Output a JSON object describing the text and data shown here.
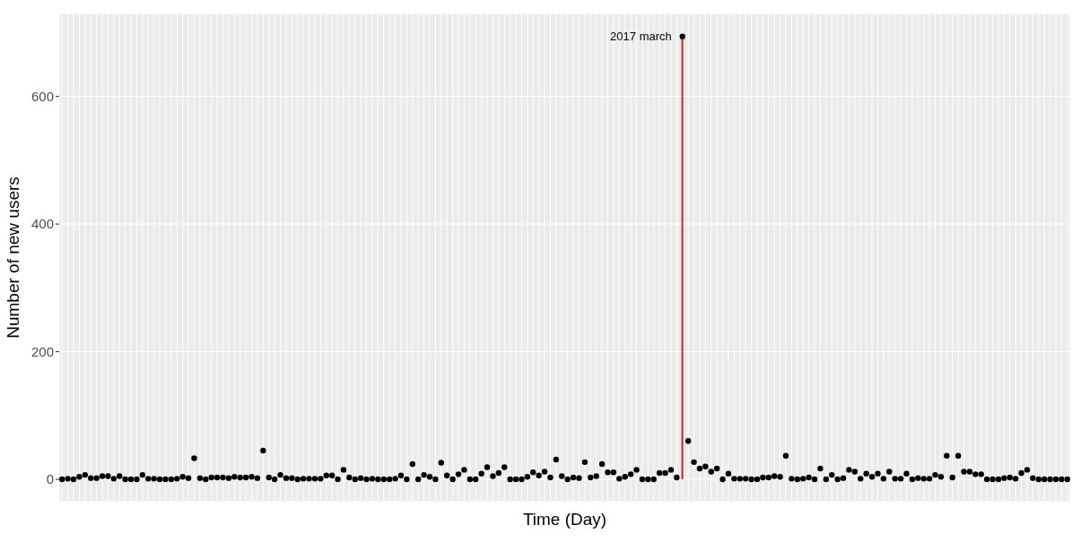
{
  "chart_data": {
    "type": "scatter",
    "xlabel": "Time (Day)",
    "ylabel": "Number of new users",
    "categories": [
      null,
      null,
      null,
      null,
      null,
      null,
      null,
      null,
      null,
      null,
      null,
      null,
      null,
      null,
      null,
      null,
      null,
      null,
      null,
      null,
      null,
      null,
      null,
      null,
      null,
      null,
      null,
      null,
      null,
      null,
      null,
      null,
      null,
      null,
      null,
      null,
      null,
      null,
      null,
      null,
      null,
      null,
      null,
      null,
      null,
      null,
      null,
      null,
      null,
      null,
      null,
      null,
      null,
      null,
      null,
      null,
      null,
      null,
      null,
      null,
      null,
      null,
      null,
      null,
      null,
      null,
      null,
      null,
      null,
      null,
      null,
      null,
      null,
      null,
      null,
      null,
      null,
      null,
      null,
      null,
      null,
      null,
      null,
      null,
      null,
      null,
      null,
      null,
      null,
      null,
      null,
      null,
      null,
      null,
      null,
      null,
      null,
      null,
      null,
      null,
      null,
      null,
      null,
      null,
      null,
      null,
      null,
      null,
      null,
      null,
      null,
      null,
      null,
      null,
      null,
      null,
      null,
      null,
      null,
      null,
      null,
      null,
      null,
      null,
      null,
      null,
      null,
      null,
      null,
      null,
      null,
      null,
      null,
      null,
      null,
      null,
      null,
      null,
      null,
      null,
      null,
      null,
      null,
      null,
      null,
      null,
      null,
      null,
      null,
      null,
      null,
      null,
      null,
      null,
      null,
      null,
      null,
      null,
      null,
      null,
      null,
      null,
      null,
      null,
      null,
      null,
      null,
      null,
      null,
      null,
      null,
      null,
      null,
      null,
      null,
      null
    ],
    "series": [
      {
        "type": "bar",
        "color": "#c1272d",
        "values": [
          null,
          null,
          null,
          null,
          null,
          null,
          null,
          null,
          null,
          null,
          null,
          null,
          null,
          null,
          null,
          null,
          null,
          null,
          null,
          null,
          null,
          null,
          null,
          null,
          null,
          null,
          null,
          null,
          null,
          null,
          null,
          null,
          null,
          null,
          null,
          null,
          null,
          null,
          null,
          null,
          null,
          null,
          null,
          null,
          null,
          null,
          null,
          null,
          null,
          null,
          null,
          null,
          null,
          null,
          null,
          null,
          null,
          null,
          null,
          null,
          null,
          null,
          null,
          null,
          null,
          null,
          null,
          null,
          null,
          null,
          null,
          null,
          null,
          null,
          null,
          null,
          null,
          null,
          null,
          null,
          null,
          null,
          null,
          null,
          null,
          null,
          null,
          null,
          null,
          null,
          null,
          null,
          null,
          null,
          null,
          null,
          null,
          null,
          null,
          null,
          null,
          null,
          null,
          null,
          null,
          null,
          null,
          null,
          694,
          null,
          null,
          null,
          null,
          null,
          null,
          null,
          null,
          null,
          null,
          null,
          null,
          null,
          null,
          null,
          null,
          null,
          null,
          null,
          null,
          null,
          null,
          null,
          null,
          null,
          null,
          null,
          null,
          null,
          null,
          null,
          null,
          null,
          null,
          null,
          null,
          null,
          null,
          null,
          null,
          null,
          null,
          null,
          null,
          null,
          null,
          null,
          null,
          null,
          null,
          null,
          null,
          null,
          null,
          null,
          null,
          null,
          null,
          null,
          null,
          null,
          null,
          null,
          null,
          null,
          null,
          null
        ]
      },
      {
        "color": "#000000",
        "values": [
          0,
          1,
          0,
          4,
          7,
          2,
          2,
          5,
          5,
          1,
          5,
          0,
          0,
          0,
          7,
          1,
          1,
          0,
          0,
          0,
          1,
          4,
          2,
          33,
          2,
          0,
          3,
          3,
          3,
          2,
          4,
          3,
          3,
          4,
          2,
          45,
          3,
          0,
          7,
          2,
          2,
          0,
          1,
          1,
          1,
          1,
          6,
          6,
          0,
          15,
          3,
          0,
          2,
          0,
          1,
          0,
          0,
          0,
          1,
          6,
          0,
          24,
          0,
          7,
          4,
          0,
          26,
          6,
          0,
          8,
          15,
          0,
          0,
          9,
          19,
          5,
          10,
          19,
          0,
          0,
          0,
          4,
          11,
          6,
          12,
          3,
          31,
          5,
          0,
          3,
          2,
          27,
          3,
          5,
          24,
          11,
          11,
          1,
          4,
          8,
          15,
          0,
          0,
          0,
          10,
          10,
          15,
          3,
          694,
          60,
          27,
          17,
          20,
          12,
          17,
          0,
          9,
          1,
          1,
          1,
          0,
          0,
          3,
          3,
          5,
          4,
          37,
          1,
          0,
          1,
          3,
          0,
          17,
          0,
          7,
          0,
          2,
          15,
          12,
          1,
          9,
          4,
          9,
          1,
          12,
          1,
          1,
          9,
          0,
          2,
          1,
          1,
          7,
          4,
          37,
          3,
          37,
          12,
          12,
          8,
          8,
          0,
          0,
          0,
          2,
          3,
          1,
          10,
          15,
          2,
          0,
          0,
          0,
          0,
          0,
          0
        ]
      }
    ],
    "annotations": [
      "2017 march"
    ],
    "ylim": [
      -35,
      730
    ],
    "yticks": [
      0,
      200,
      400,
      600
    ],
    "grid": true,
    "marker": "circle"
  }
}
